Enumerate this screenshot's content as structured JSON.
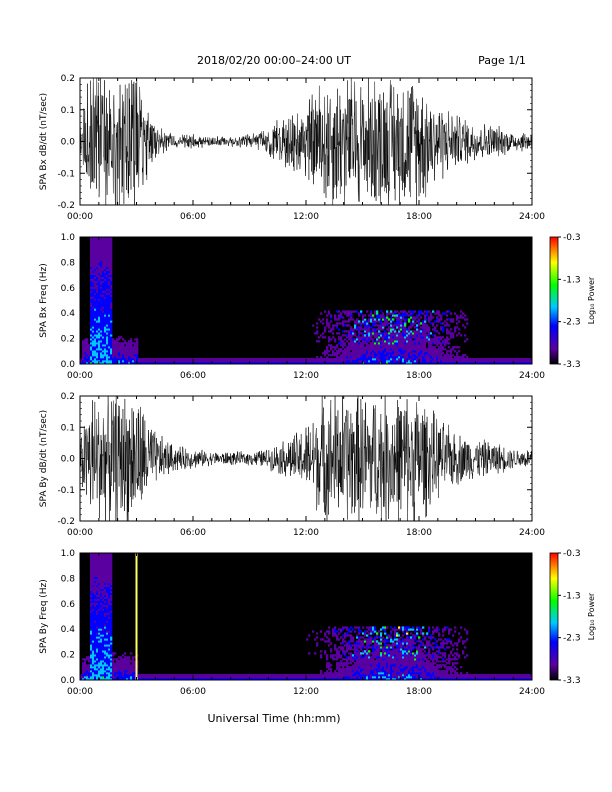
{
  "header": {
    "title": "2018/02/20  00:00–24:00 UT",
    "page": "Page 1/1"
  },
  "xaxis": {
    "label": "Universal Time (hh:mm)",
    "ticks": [
      "00:00",
      "06:00",
      "12:00",
      "18:00",
      "24:00"
    ]
  },
  "colorbar": {
    "label": "Log₁₀ Power",
    "ticks": [
      "-0.3",
      "-1.3",
      "-2.3",
      "-3.3"
    ]
  },
  "chart_data": [
    {
      "type": "line",
      "ylabel": "SPA Bx dB/dt (nT/sec)",
      "ylim": [
        -0.2,
        0.2
      ],
      "yticks": [
        "0.2",
        "0.1",
        "0.0",
        "-0.1",
        "-0.2"
      ],
      "xlim_hours": [
        0,
        24
      ],
      "series": [
        {
          "amplitude_envelope": {
            "hours": [
              0,
              0.5,
              1,
              2,
              3,
              4,
              5,
              6,
              7,
              8,
              9,
              10,
              11,
              12,
              13,
              14,
              15,
              16,
              17,
              18,
              19,
              20,
              21,
              22,
              23,
              24
            ],
            "values": [
              0.05,
              0.2,
              0.2,
              0.2,
              0.2,
              0.05,
              0.02,
              0.02,
              0.015,
              0.015,
              0.02,
              0.04,
              0.08,
              0.12,
              0.2,
              0.2,
              0.2,
              0.2,
              0.2,
              0.2,
              0.12,
              0.08,
              0.06,
              0.05,
              0.03,
              0.03
            ]
          }
        }
      ]
    },
    {
      "type": "heatmap",
      "ylabel": "SPA Bx Freq (Hz)",
      "ylim": [
        0.0,
        1.0
      ],
      "yticks": [
        "1.0",
        "0.8",
        "0.6",
        "0.4",
        "0.2",
        "0.0"
      ],
      "color_scale": [
        -3.3,
        -0.3
      ],
      "colormap": [
        "#000000",
        "#5a00a0",
        "#0000ff",
        "#00c8ff",
        "#00ff00",
        "#ffff00",
        "#ff0000"
      ]
    },
    {
      "type": "line",
      "ylabel": "SPA By dB/dt (nT/sec)",
      "ylim": [
        -0.2,
        0.2
      ],
      "yticks": [
        "0.2",
        "0.1",
        "0.0",
        "-0.1",
        "-0.2"
      ],
      "xlim_hours": [
        0,
        24
      ],
      "series": [
        {
          "amplitude_envelope": {
            "hours": [
              0,
              0.5,
              1,
              2,
              3,
              4,
              5,
              6,
              7,
              8,
              9,
              10,
              11,
              12,
              13,
              14,
              15,
              16,
              17,
              18,
              19,
              20,
              21,
              22,
              23,
              24
            ],
            "values": [
              0.06,
              0.2,
              0.2,
              0.2,
              0.2,
              0.08,
              0.04,
              0.03,
              0.02,
              0.02,
              0.02,
              0.03,
              0.06,
              0.1,
              0.2,
              0.2,
              0.2,
              0.2,
              0.2,
              0.2,
              0.12,
              0.08,
              0.06,
              0.05,
              0.03,
              0.03
            ]
          }
        }
      ]
    },
    {
      "type": "heatmap",
      "ylabel": "SPA By Freq (Hz)",
      "ylim": [
        0.0,
        1.0
      ],
      "yticks": [
        "1.0",
        "0.8",
        "0.6",
        "0.4",
        "0.2",
        "0.0"
      ],
      "color_scale": [
        -3.3,
        -0.3
      ],
      "colormap": [
        "#000000",
        "#5a00a0",
        "#0000ff",
        "#00c8ff",
        "#00ff00",
        "#ffff00",
        "#ff0000"
      ],
      "annotations": [
        {
          "type": "vertical-line",
          "hour": 3.0,
          "color": "#ffff66"
        }
      ]
    }
  ]
}
